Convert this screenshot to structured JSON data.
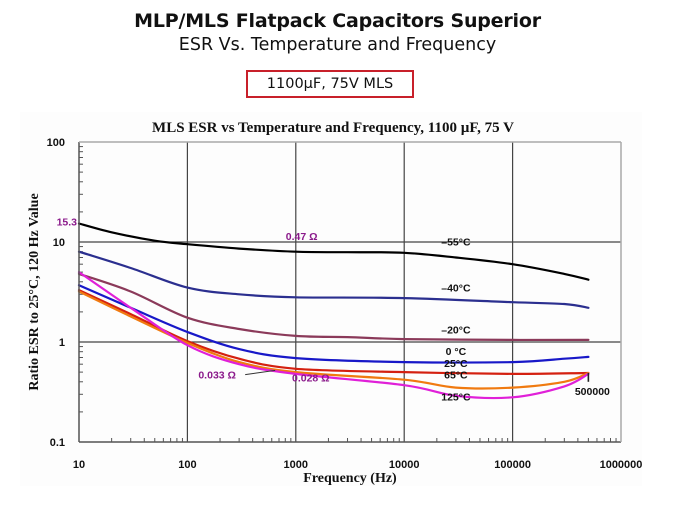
{
  "slide": {
    "title": "MLP/MLS Flatpack Capacitors Superior",
    "subtitle": "ESR Vs. Temperature and Frequency",
    "badge": "1100µF, 75V MLS"
  },
  "colors": {
    "badge_border": "#c8202a",
    "annotation": "#8b1a8b"
  },
  "chart_data": {
    "type": "line",
    "title": "MLS ESR vs Temperature and Frequency, 1100 µF, 75 V",
    "xlabel": "Frequency (Hz)",
    "ylabel": "Ratio ESR to 25°C, 120 Hz Value",
    "xscale": "log",
    "yscale": "log",
    "xlim": [
      10,
      1000000
    ],
    "ylim": [
      0.1,
      100
    ],
    "grid": "major decades",
    "xticks": [
      10,
      100,
      1000,
      10000,
      100000,
      1000000
    ],
    "xtick_labels": [
      "10",
      "100",
      "1000",
      "10000",
      "100000",
      "1000000"
    ],
    "yticks": [
      0.1,
      1,
      10,
      100
    ],
    "ytick_labels": [
      "0.1",
      "1",
      "10",
      "100"
    ],
    "series": [
      {
        "name": "-55°C",
        "label": "–55°C",
        "color": "#000000",
        "x": [
          10,
          20,
          50,
          100,
          300,
          1000,
          3000,
          10000,
          30000,
          100000,
          300000,
          500000
        ],
        "y": [
          15.3,
          12.5,
          10.3,
          9.5,
          8.6,
          8.0,
          7.9,
          7.8,
          7.0,
          6.0,
          4.8,
          4.2
        ]
      },
      {
        "name": "-40°C",
        "label": "–40°C",
        "color": "#2b2f8f",
        "x": [
          10,
          30,
          100,
          300,
          1000,
          10000,
          100000,
          300000,
          500000
        ],
        "y": [
          8.0,
          5.5,
          3.5,
          3.0,
          2.8,
          2.75,
          2.5,
          2.4,
          2.2
        ]
      },
      {
        "name": "-20°C",
        "label": "–20°C",
        "color": "#8b3a5a",
        "x": [
          10,
          30,
          100,
          300,
          1000,
          3000,
          10000,
          100000,
          500000
        ],
        "y": [
          4.8,
          3.2,
          1.75,
          1.35,
          1.15,
          1.12,
          1.07,
          1.05,
          1.05
        ]
      },
      {
        "name": "0°C",
        "label": "0 °C",
        "color": "#1818c8",
        "x": [
          10,
          30,
          100,
          300,
          1000,
          10000,
          100000,
          300000,
          500000
        ],
        "y": [
          3.7,
          2.2,
          1.26,
          0.85,
          0.69,
          0.63,
          0.63,
          0.68,
          0.71
        ]
      },
      {
        "name": "25°C",
        "label": "25°C",
        "color": "#d42010",
        "x": [
          10,
          30,
          100,
          300,
          1000,
          10000,
          100000,
          500000
        ],
        "y": [
          3.3,
          1.9,
          1.02,
          0.68,
          0.54,
          0.5,
          0.48,
          0.49
        ]
      },
      {
        "name": "65°C",
        "label": "65°C",
        "color": "#f07a10",
        "x": [
          10,
          30,
          100,
          300,
          1000,
          10000,
          30000,
          100000,
          300000,
          500000
        ],
        "y": [
          3.2,
          1.8,
          0.98,
          0.63,
          0.5,
          0.42,
          0.35,
          0.35,
          0.4,
          0.49
        ]
      },
      {
        "name": "125°C",
        "label": "125°C",
        "color": "#e020d8",
        "x": [
          10,
          30,
          100,
          300,
          1000,
          10000,
          30000,
          100000,
          300000,
          500000
        ],
        "y": [
          5.0,
          2.2,
          0.93,
          0.6,
          0.48,
          0.37,
          0.29,
          0.28,
          0.36,
          0.48
        ]
      }
    ],
    "annotations": [
      {
        "text": "15.3",
        "x": 10,
        "y": 15.3
      },
      {
        "text": "0.47 Ω",
        "x": 1000,
        "y": 11
      },
      {
        "text": "0.033 Ω",
        "x": 500,
        "y": 0.45
      },
      {
        "text": "0.028 Ω",
        "x": 1000,
        "y": 0.42
      },
      {
        "text": "500000",
        "x": 500000,
        "y": 0.34
      }
    ],
    "series_labels": [
      {
        "text": "–55°C",
        "x": 30000,
        "y": 9.2
      },
      {
        "text": "–40°C",
        "x": 30000,
        "y": 3.2
      },
      {
        "text": "–20°C",
        "x": 30000,
        "y": 1.22
      },
      {
        "text": "0 °C",
        "x": 30000,
        "y": 0.74
      },
      {
        "text": "25°C",
        "x": 30000,
        "y": 0.56
      },
      {
        "text": "65°C",
        "x": 30000,
        "y": 0.43
      },
      {
        "text": "125°C",
        "x": 30000,
        "y": 0.26
      }
    ]
  }
}
